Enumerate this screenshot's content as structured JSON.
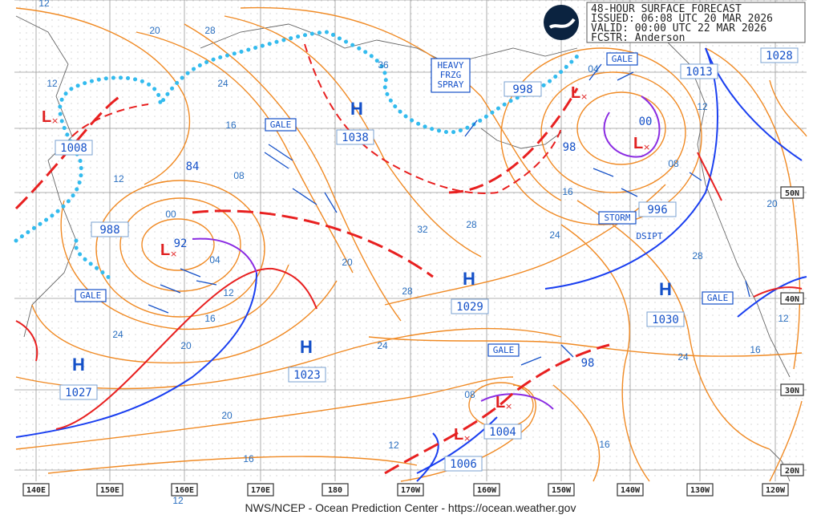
{
  "header": {
    "title": "48-HOUR SURFACE FORECAST",
    "issued": "ISSUED: 06:08 UTC 20 MAR 2026",
    "valid": "VALID:  00:00 UTC 22 MAR 2026",
    "forecaster": "FCSTR:  Anderson",
    "logo_text": "NOAA"
  },
  "footer": {
    "credit": "NWS/NCEP - Ocean Prediction Center - https://ocean.weather.gov"
  },
  "axes": {
    "longitudes": [
      "140E",
      "150E",
      "160E",
      "170E",
      "180",
      "170W",
      "160W",
      "150W",
      "140W",
      "130W",
      "120W"
    ],
    "latitudes": [
      "50N",
      "40N",
      "30N",
      "20N"
    ]
  },
  "highs": [
    {
      "symbol": "H",
      "pressure": "1038"
    },
    {
      "symbol": "H",
      "pressure": "1029"
    },
    {
      "symbol": "H",
      "pressure": "1030"
    },
    {
      "symbol": "H",
      "pressure": "1023"
    },
    {
      "symbol": "H",
      "pressure": "1027"
    }
  ],
  "lows": [
    {
      "symbol": "L",
      "pressure": "1008"
    },
    {
      "symbol": "L",
      "pressure": "988"
    },
    {
      "symbol": "L",
      "pressure": "998"
    },
    {
      "symbol": "L",
      "pressure": "996"
    },
    {
      "symbol": "L",
      "pressure": "1004"
    },
    {
      "symbol": "L",
      "pressure": "1006"
    }
  ],
  "other_pressures": [
    "1028",
    "1013",
    "84",
    "98",
    "98",
    "92",
    "00"
  ],
  "isobar_labels": [
    "12",
    "20",
    "28",
    "12",
    "24",
    "16",
    "12",
    "08",
    "00",
    "04",
    "12",
    "16",
    "20",
    "24",
    "20",
    "32",
    "28",
    "28",
    "24",
    "24",
    "16",
    "08",
    "12",
    "28",
    "20",
    "12",
    "16",
    "24",
    "20",
    "16",
    "12",
    "08",
    "16",
    "12",
    "36",
    "04"
  ],
  "warnings": [
    "GALE",
    "GALE",
    "GALE",
    "GALE",
    "GALE",
    "STORM",
    "DSIPT"
  ],
  "spray": [
    "HEAVY",
    "FRZG",
    "SPRAY"
  ],
  "colors": {
    "isobar": "#f08a24",
    "cold_front": "#1a3ff0",
    "warm_front": "#e82020",
    "occluded": "#8a2be2",
    "ice": "#33bbee",
    "text": "#1450c8"
  }
}
